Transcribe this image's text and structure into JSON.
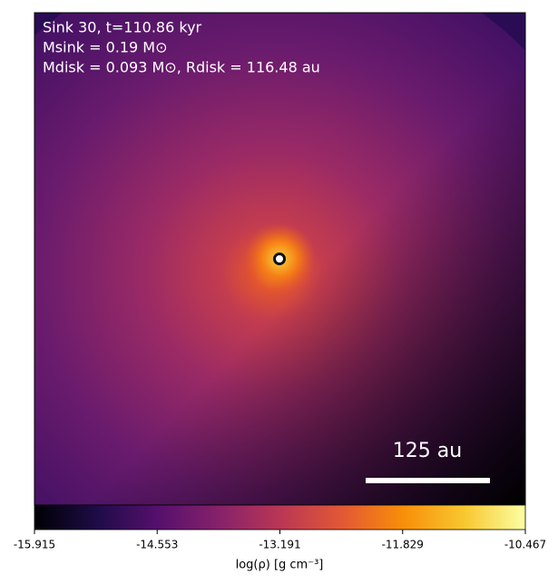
{
  "chart_data": {
    "type": "image",
    "annotations": [
      "Sink 30, t=110.86 kyr",
      "Msink = 0.19 M⊙",
      "Mdisk = 0.093 M⊙, Rdisk = 116.48 au"
    ],
    "scale_bar_label": "125 au",
    "colorbar": {
      "label": "log(ρ) [g cm⁻³]",
      "lim": [
        -15.915,
        -10.467
      ],
      "ticks": [
        -15.915,
        -14.553,
        -13.191,
        -11.829,
        -10.467
      ]
    }
  }
}
